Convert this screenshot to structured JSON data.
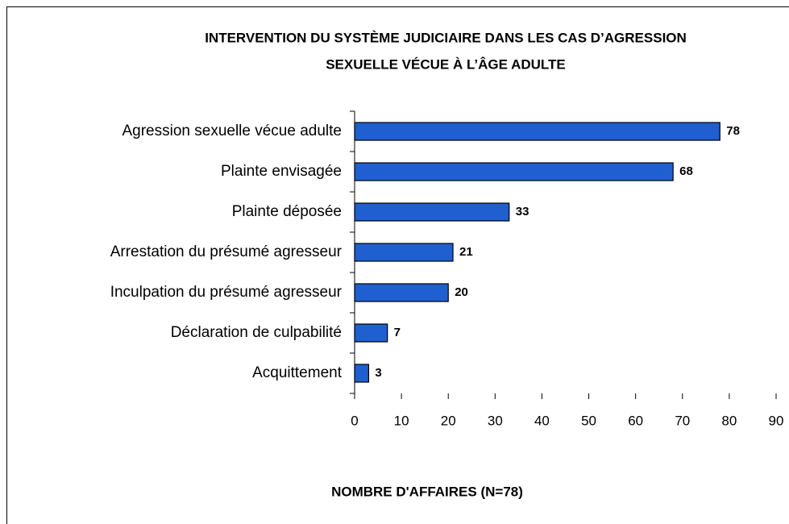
{
  "chart_data": {
    "type": "bar",
    "orientation": "horizontal",
    "title": [
      "INTERVENTION DU SYSTÈME JUDICIAIRE DANS LES CAS D’AGRESSION",
      "SEXUELLE VÉCUE À L’ÂGE ADULTE"
    ],
    "x_label": "NOMBRE D'AFFAIRES (N=78)",
    "categories": [
      "Agression sexuelle vécue adulte",
      "Plainte envisagée",
      "Plainte déposée",
      "Arrestation du présumé agresseur",
      "Inculpation du présumé agresseur",
      "Déclaration de culpabilité",
      "Acquittement"
    ],
    "values": [
      78,
      68,
      33,
      21,
      20,
      7,
      3
    ],
    "color": "#1f5fd0",
    "xlim": [
      0,
      90
    ],
    "xticks": [
      0,
      10,
      20,
      30,
      40,
      50,
      60,
      70,
      80,
      90
    ]
  }
}
